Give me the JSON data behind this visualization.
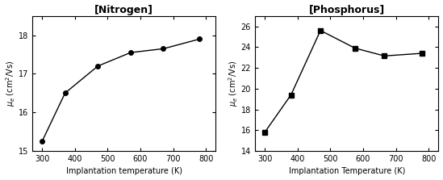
{
  "nitrogen": {
    "title": "[Nitrogen]",
    "x": [
      300,
      370,
      470,
      570,
      670,
      780
    ],
    "y": [
      15.25,
      16.5,
      17.2,
      17.55,
      17.65,
      17.9
    ],
    "xlabel": "Implantation temperature (K)",
    "ylabel": "$\\mu_e$ (cm$^2$/Vs)",
    "xlim": [
      270,
      830
    ],
    "ylim": [
      15,
      18.5
    ],
    "yticks": [
      15,
      16,
      17,
      18
    ],
    "xticks": [
      300,
      400,
      500,
      600,
      700,
      800
    ],
    "marker": "o"
  },
  "phosphorus": {
    "title": "[Phosphorus]",
    "x": [
      300,
      380,
      470,
      575,
      665,
      780
    ],
    "y": [
      15.8,
      19.4,
      25.6,
      23.9,
      23.15,
      23.4
    ],
    "xlabel": "Implantation Temperature (K)",
    "ylabel": "$\\mu_e$ (cm$^2$/Vs)",
    "xlim": [
      270,
      830
    ],
    "ylim": [
      14,
      27
    ],
    "yticks": [
      14,
      16,
      18,
      20,
      22,
      24,
      26
    ],
    "xticks": [
      300,
      400,
      500,
      600,
      700,
      800
    ],
    "marker": "s"
  }
}
